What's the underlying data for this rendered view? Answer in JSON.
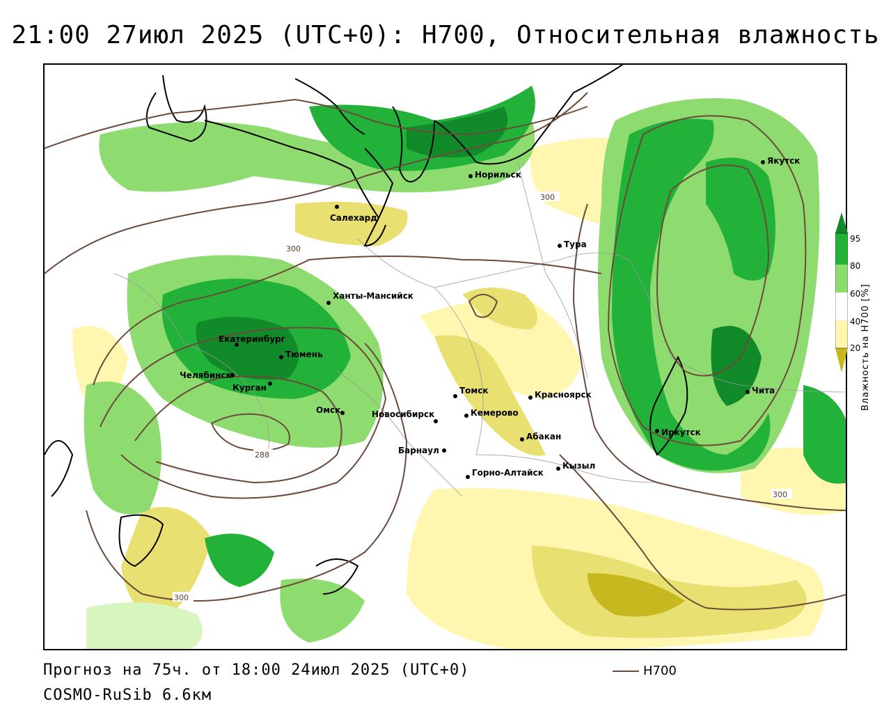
{
  "header": {
    "title": "21:00 27июл 2025 (UTC+0): H700, Относительная влажность"
  },
  "map": {
    "cities": [
      {
        "name": "Норильск"
      },
      {
        "name": "Якутск"
      },
      {
        "name": "Салехард"
      },
      {
        "name": "Тура"
      },
      {
        "name": "Ханты-Мансийск"
      },
      {
        "name": "Екатеринбург"
      },
      {
        "name": "Тюмень"
      },
      {
        "name": "Челябинск"
      },
      {
        "name": "Курган"
      },
      {
        "name": "Омск"
      },
      {
        "name": "Новосибирск"
      },
      {
        "name": "Томск"
      },
      {
        "name": "Кемерово"
      },
      {
        "name": "Красноярск"
      },
      {
        "name": "Абакан"
      },
      {
        "name": "Барнаул"
      },
      {
        "name": "Горно-Алтайск"
      },
      {
        "name": "Кызыл"
      },
      {
        "name": "Иркутск"
      },
      {
        "name": "Чита"
      }
    ],
    "contour_labels": [
      "300",
      "300",
      "288",
      "300",
      "300"
    ]
  },
  "colorbar": {
    "label": "Влажность на H700 [%]",
    "ticks": [
      "95",
      "80",
      "60",
      "40",
      "20"
    ],
    "colors": {
      "very_dry": "#c8b820",
      "dry": "#e8e070",
      "moderate_dry": "#fff6b0",
      "neutral": "#ffffff",
      "moist_light": "#d8f5c0",
      "moist": "#8edc70",
      "wet": "#22b23a",
      "very_wet": "#118a2a"
    }
  },
  "footer": {
    "forecast": "Прогноз на 75ч. от 18:00 24июл 2025 (UTC+0)",
    "model": "COSMO-RuSib 6.6км",
    "legend_label": "H700",
    "legend_color": "#6b4a3a"
  }
}
